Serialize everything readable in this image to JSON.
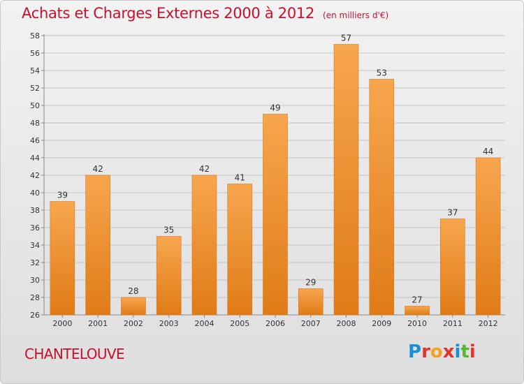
{
  "header": {
    "title": "Achats et Charges Externes 2000 à 2012",
    "unit": "(en milliers d'€)"
  },
  "footer": {
    "commune": "CHANTELOUVE",
    "brand": "Proxiti",
    "brand_colors": [
      "#1a8fd6",
      "#e2332d",
      "#f5a11c",
      "#e2332d",
      "#1a8fd6",
      "#5cb531",
      "#e2332d"
    ]
  },
  "colors": {
    "bar_top": "#f7a64e",
    "bar_bottom": "#e07b17",
    "title": "#c8102e",
    "grid": "#c4c4c4"
  },
  "chart_data": {
    "type": "bar",
    "categories": [
      "2000",
      "2001",
      "2002",
      "2003",
      "2004",
      "2005",
      "2006",
      "2007",
      "2008",
      "2009",
      "2010",
      "2011",
      "2012"
    ],
    "values": [
      39,
      42,
      28,
      35,
      42,
      41,
      49,
      29,
      57,
      53,
      27,
      37,
      44
    ],
    "ylim": [
      26,
      58
    ],
    "yticks": [
      26,
      28,
      30,
      32,
      34,
      36,
      38,
      40,
      42,
      44,
      46,
      48,
      50,
      52,
      54,
      56,
      58
    ],
    "grid": true,
    "legend": "none"
  }
}
